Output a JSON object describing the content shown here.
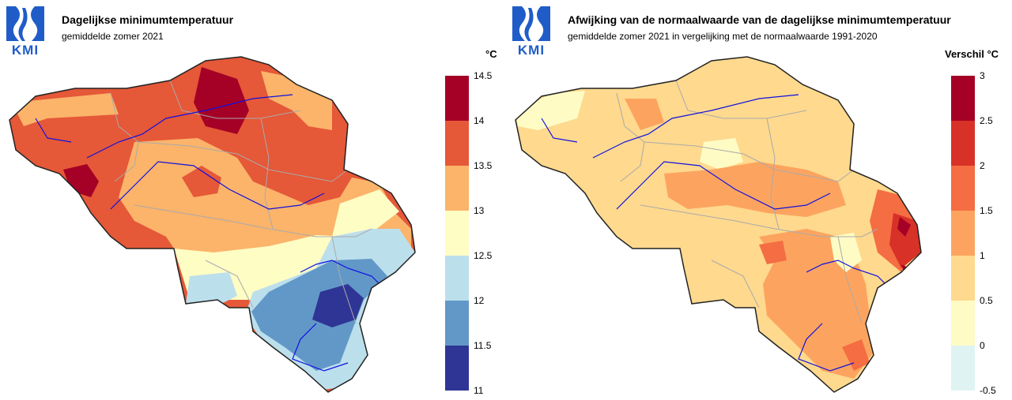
{
  "left_panel": {
    "logo_text": "KMI",
    "title": "Dagelijkse minimumtemperatuur",
    "subtitle": "gemiddelde zomer 2021",
    "unit": "°C",
    "legend": {
      "colors": [
        "#a50026",
        "#e55838",
        "#fbb46a",
        "#fefdc4",
        "#bcdfec",
        "#6298c8",
        "#2f3595"
      ],
      "ticks": [
        "14.5",
        "14",
        "13.5",
        "13",
        "12.5",
        "12",
        "11.5",
        "11"
      ]
    }
  },
  "right_panel": {
    "logo_text": "KMI",
    "title": "Afwijking van de normaalwaarde van de dagelijkse minimumtemperatuur",
    "subtitle": "gemiddelde zomer 2021 in vergelijking met de normaalwaarde 1991-2020",
    "unit": "Verschil °C",
    "legend": {
      "colors": [
        "#a50026",
        "#d83127",
        "#f46d43",
        "#fca45f",
        "#fed98e",
        "#fefcc4",
        "#e0f3f3"
      ],
      "ticks": [
        "3",
        "2.5",
        "2",
        "1.5",
        "1",
        "0.5",
        "0",
        "-0.5"
      ]
    }
  }
}
